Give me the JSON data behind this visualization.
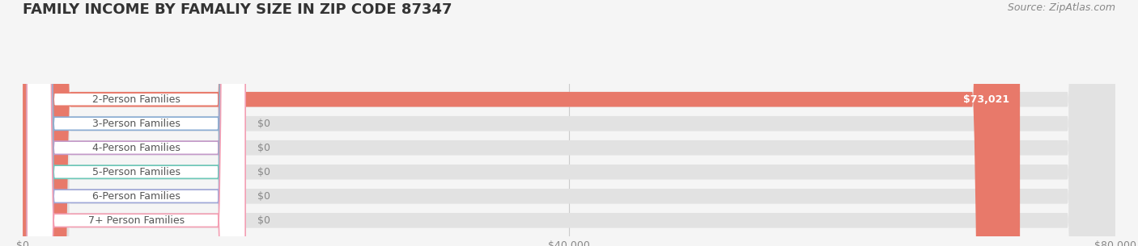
{
  "title": "FAMILY INCOME BY FAMALIY SIZE IN ZIP CODE 87347",
  "source_text": "Source: ZipAtlas.com",
  "categories": [
    "2-Person Families",
    "3-Person Families",
    "4-Person Families",
    "5-Person Families",
    "6-Person Families",
    "7+ Person Families"
  ],
  "values": [
    73021,
    0,
    0,
    0,
    0,
    0
  ],
  "bar_colors": [
    "#e8796a",
    "#8aadd4",
    "#c49ac9",
    "#6dc8b8",
    "#a0a8d8",
    "#f4a0b4"
  ],
  "value_labels": [
    "$73,021",
    "$0",
    "$0",
    "$0",
    "$0",
    "$0"
  ],
  "xlim": [
    0,
    80000
  ],
  "xticks": [
    0,
    40000,
    80000
  ],
  "xtick_labels": [
    "$0",
    "$40,000",
    "$80,000"
  ],
  "background_color": "#f5f5f5",
  "title_fontsize": 13,
  "source_fontsize": 9,
  "label_fontsize": 9,
  "value_fontsize": 9
}
